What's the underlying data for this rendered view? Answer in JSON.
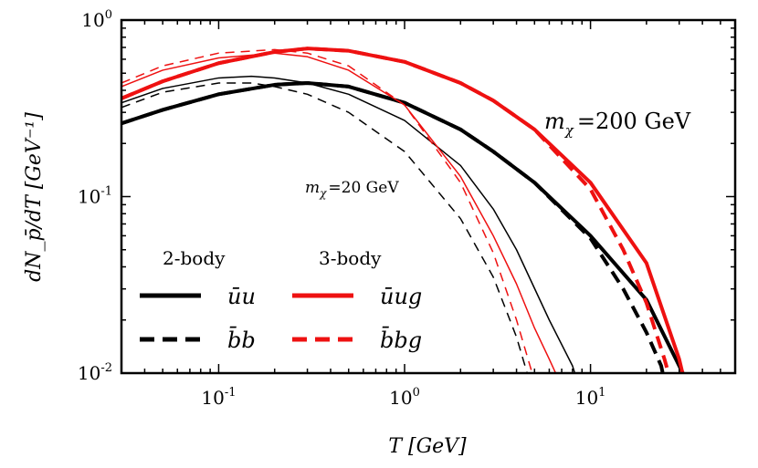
{
  "chart_data": {
    "type": "line",
    "xlabel": "T [GeV]",
    "ylabel": "dN_p̄/dT [GeV⁻¹]",
    "xscale": "log",
    "yscale": "log",
    "xlim": [
      0.03,
      60
    ],
    "ylim": [
      0.01,
      1.0
    ],
    "x_ticks": [
      {
        "value": 0.1,
        "base": "10",
        "exp": "-1"
      },
      {
        "value": 1,
        "base": "10",
        "exp": "0"
      },
      {
        "value": 10,
        "base": "10",
        "exp": "1"
      }
    ],
    "y_ticks": [
      {
        "value": 0.01,
        "base": "10",
        "exp": "-2"
      },
      {
        "value": 0.1,
        "base": "10",
        "exp": "-1"
      },
      {
        "value": 1,
        "base": "10",
        "exp": "0"
      }
    ],
    "annotations": {
      "high_mass": {
        "prefix": "m",
        "sub": "χ",
        "text": "=200 GeV"
      },
      "low_mass": {
        "prefix": "m",
        "sub": "χ",
        "text": "=20 GeV"
      }
    },
    "legend": {
      "group_2body": "2-body",
      "group_3body": "3-body",
      "entries": [
        {
          "label": "ūu",
          "color": "#000000",
          "dashed": false
        },
        {
          "label": "b̄b",
          "color": "#000000",
          "dashed": true
        },
        {
          "label": "ūug",
          "color": "#ee1111",
          "dashed": false
        },
        {
          "label": "b̄bg",
          "color": "#ee1111",
          "dashed": true
        }
      ]
    },
    "series": [
      {
        "mass": 200,
        "channel": "uu",
        "color": "#000000",
        "dashed": false,
        "width": 4,
        "points": [
          [
            0.03,
            0.26
          ],
          [
            0.05,
            0.31
          ],
          [
            0.1,
            0.38
          ],
          [
            0.2,
            0.43
          ],
          [
            0.3,
            0.44
          ],
          [
            0.5,
            0.42
          ],
          [
            1,
            0.34
          ],
          [
            2,
            0.24
          ],
          [
            3,
            0.18
          ],
          [
            5,
            0.12
          ],
          [
            10,
            0.06
          ],
          [
            20,
            0.026
          ],
          [
            30,
            0.011
          ],
          [
            33,
            0.009
          ]
        ]
      },
      {
        "mass": 200,
        "channel": "bb",
        "color": "#000000",
        "dashed": true,
        "width": 4,
        "points": [
          [
            0.03,
            0.26
          ],
          [
            0.05,
            0.31
          ],
          [
            0.1,
            0.38
          ],
          [
            0.2,
            0.43
          ],
          [
            0.3,
            0.44
          ],
          [
            0.5,
            0.42
          ],
          [
            1,
            0.34
          ],
          [
            2,
            0.24
          ],
          [
            3,
            0.18
          ],
          [
            5,
            0.12
          ],
          [
            10,
            0.058
          ],
          [
            15,
            0.03
          ],
          [
            20,
            0.017
          ],
          [
            24,
            0.011
          ],
          [
            25,
            0.009
          ]
        ]
      },
      {
        "mass": 200,
        "channel": "uug",
        "color": "#ee1111",
        "dashed": false,
        "width": 4,
        "points": [
          [
            0.03,
            0.36
          ],
          [
            0.05,
            0.45
          ],
          [
            0.1,
            0.57
          ],
          [
            0.2,
            0.66
          ],
          [
            0.3,
            0.69
          ],
          [
            0.5,
            0.67
          ],
          [
            1,
            0.58
          ],
          [
            2,
            0.44
          ],
          [
            3,
            0.35
          ],
          [
            5,
            0.24
          ],
          [
            10,
            0.12
          ],
          [
            20,
            0.042
          ],
          [
            30,
            0.012
          ],
          [
            32,
            0.009
          ]
        ]
      },
      {
        "mass": 200,
        "channel": "bbg",
        "color": "#ee1111",
        "dashed": true,
        "width": 4,
        "points": [
          [
            0.03,
            0.36
          ],
          [
            0.05,
            0.45
          ],
          [
            0.1,
            0.57
          ],
          [
            0.2,
            0.66
          ],
          [
            0.3,
            0.69
          ],
          [
            0.5,
            0.67
          ],
          [
            1,
            0.58
          ],
          [
            2,
            0.44
          ],
          [
            3,
            0.35
          ],
          [
            5,
            0.24
          ],
          [
            10,
            0.11
          ],
          [
            15,
            0.05
          ],
          [
            20,
            0.025
          ],
          [
            25,
            0.012
          ],
          [
            27,
            0.009
          ]
        ]
      },
      {
        "mass": 20,
        "channel": "uu",
        "color": "#000000",
        "dashed": false,
        "width": 1.5,
        "points": [
          [
            0.03,
            0.34
          ],
          [
            0.05,
            0.41
          ],
          [
            0.1,
            0.47
          ],
          [
            0.15,
            0.48
          ],
          [
            0.2,
            0.47
          ],
          [
            0.3,
            0.44
          ],
          [
            0.5,
            0.38
          ],
          [
            1,
            0.27
          ],
          [
            2,
            0.15
          ],
          [
            3,
            0.085
          ],
          [
            4,
            0.05
          ],
          [
            6,
            0.02
          ],
          [
            8,
            0.011
          ],
          [
            8.5,
            0.009
          ]
        ]
      },
      {
        "mass": 20,
        "channel": "bb",
        "color": "#000000",
        "dashed": true,
        "width": 1.5,
        "points": [
          [
            0.03,
            0.32
          ],
          [
            0.05,
            0.39
          ],
          [
            0.1,
            0.44
          ],
          [
            0.15,
            0.44
          ],
          [
            0.2,
            0.42
          ],
          [
            0.3,
            0.38
          ],
          [
            0.5,
            0.3
          ],
          [
            1,
            0.18
          ],
          [
            2,
            0.075
          ],
          [
            3,
            0.035
          ],
          [
            4,
            0.016
          ],
          [
            4.7,
            0.009
          ]
        ]
      },
      {
        "mass": 20,
        "channel": "uug",
        "color": "#ee1111",
        "dashed": false,
        "width": 1.5,
        "points": [
          [
            0.03,
            0.42
          ],
          [
            0.05,
            0.52
          ],
          [
            0.1,
            0.61
          ],
          [
            0.2,
            0.65
          ],
          [
            0.3,
            0.62
          ],
          [
            0.5,
            0.52
          ],
          [
            1,
            0.33
          ],
          [
            2,
            0.13
          ],
          [
            3,
            0.06
          ],
          [
            4,
            0.032
          ],
          [
            5,
            0.018
          ],
          [
            6,
            0.012
          ],
          [
            6.8,
            0.009
          ]
        ]
      },
      {
        "mass": 20,
        "channel": "bbg",
        "color": "#ee1111",
        "dashed": true,
        "width": 1.5,
        "points": [
          [
            0.03,
            0.44
          ],
          [
            0.05,
            0.55
          ],
          [
            0.1,
            0.65
          ],
          [
            0.2,
            0.68
          ],
          [
            0.3,
            0.65
          ],
          [
            0.5,
            0.55
          ],
          [
            1,
            0.33
          ],
          [
            2,
            0.12
          ],
          [
            3,
            0.048
          ],
          [
            4,
            0.02
          ],
          [
            5,
            0.009
          ]
        ]
      }
    ]
  }
}
